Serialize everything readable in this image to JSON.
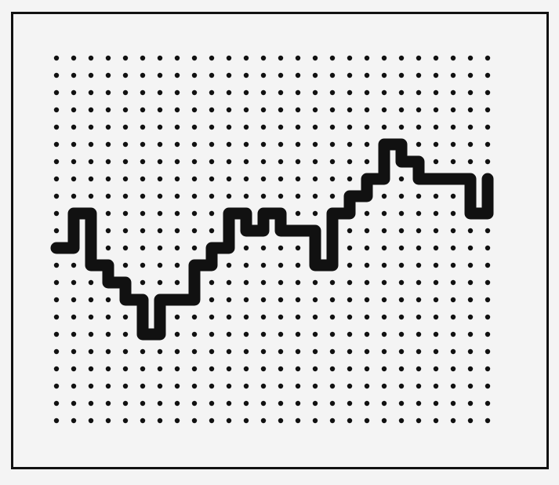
{
  "colors": {
    "background": "#f4f4f4",
    "frame": "#111111",
    "dots": "#111111",
    "path": "#111111"
  },
  "grid": {
    "columns": 26,
    "rows": 22
  },
  "path_points": [
    [
      0,
      11
    ],
    [
      1,
      11
    ],
    [
      1,
      9
    ],
    [
      2,
      9
    ],
    [
      2,
      12
    ],
    [
      3,
      12
    ],
    [
      3,
      13
    ],
    [
      4,
      13
    ],
    [
      4,
      14
    ],
    [
      5,
      14
    ],
    [
      5,
      16
    ],
    [
      6,
      16
    ],
    [
      6,
      14
    ],
    [
      8,
      14
    ],
    [
      8,
      12
    ],
    [
      9,
      12
    ],
    [
      9,
      11
    ],
    [
      10,
      11
    ],
    [
      10,
      9
    ],
    [
      11,
      9
    ],
    [
      11,
      10
    ],
    [
      12,
      10
    ],
    [
      12,
      9
    ],
    [
      13,
      9
    ],
    [
      13,
      10
    ],
    [
      15,
      10
    ],
    [
      15,
      12
    ],
    [
      16,
      12
    ],
    [
      16,
      9
    ],
    [
      17,
      9
    ],
    [
      17,
      8
    ],
    [
      18,
      8
    ],
    [
      18,
      7
    ],
    [
      19,
      7
    ],
    [
      19,
      5
    ],
    [
      20,
      5
    ],
    [
      20,
      6
    ],
    [
      21,
      6
    ],
    [
      21,
      7
    ],
    [
      24,
      7
    ],
    [
      24,
      9
    ],
    [
      25,
      9
    ],
    [
      25,
      7
    ]
  ]
}
